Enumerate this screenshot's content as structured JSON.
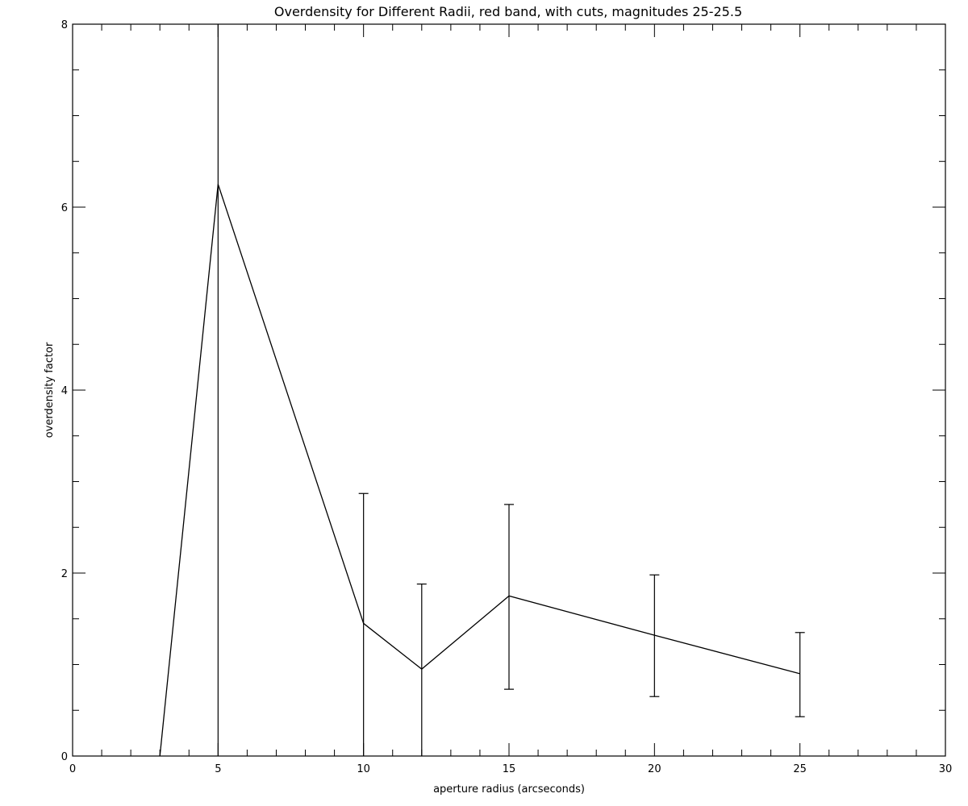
{
  "chart_data": {
    "type": "line",
    "title": "Overdensity for Different Radii, red band, with cuts, magnitudes 25-25.5",
    "xlabel": "aperture radius (arcseconds)",
    "ylabel": "overdensity factor",
    "xlim": [
      0,
      30
    ],
    "ylim": [
      0,
      8
    ],
    "x_ticks": [
      0,
      5,
      10,
      15,
      20,
      25,
      30
    ],
    "y_ticks": [
      0,
      2,
      4,
      6,
      8
    ],
    "x_minor_step": 1,
    "y_minor_step": 0.5,
    "grid": false,
    "legend": "none",
    "series": [
      {
        "x": [
          3,
          5,
          10,
          12,
          15,
          20,
          25
        ],
        "y": [
          0.0,
          6.25,
          1.45,
          0.95,
          1.75,
          1.32,
          0.9
        ],
        "err_low": [
          null,
          0.0,
          0.0,
          0.0,
          0.73,
          0.65,
          0.43
        ],
        "err_high": [
          null,
          8.0,
          2.87,
          1.88,
          2.75,
          1.98,
          1.35
        ]
      }
    ],
    "color": "#000000"
  }
}
